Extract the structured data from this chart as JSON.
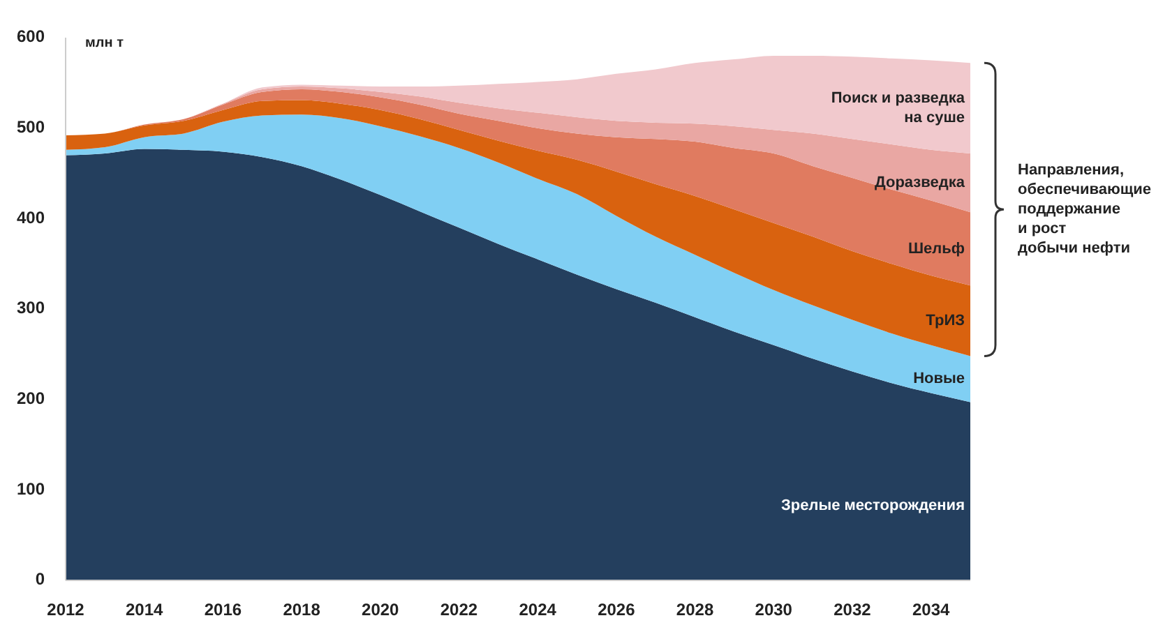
{
  "chart_data": {
    "type": "area",
    "stacked": true,
    "ylabel": "млн т",
    "x": [
      2012,
      2013,
      2014,
      2015,
      2016,
      2017,
      2018,
      2019,
      2020,
      2021,
      2022,
      2023,
      2024,
      2025,
      2026,
      2027,
      2028,
      2029,
      2030,
      2031,
      2032,
      2033,
      2034,
      2035
    ],
    "xlim": [
      2012,
      2035
    ],
    "xticks": [
      2012,
      2014,
      2016,
      2018,
      2020,
      2022,
      2024,
      2026,
      2028,
      2030,
      2032,
      2034
    ],
    "ylim": [
      0,
      600
    ],
    "yticks": [
      0,
      100,
      200,
      300,
      400,
      500,
      600
    ],
    "grid": false,
    "series": [
      {
        "name": "Зрелые месторождения",
        "color": "#243f5e",
        "values": [
          470,
          472,
          477,
          476,
          474,
          468,
          458,
          443,
          426,
          408,
          390,
          372,
          355,
          338,
          322,
          307,
          291,
          275,
          260,
          245,
          231,
          218,
          207,
          197
        ]
      },
      {
        "name": "Новые",
        "color": "#80cff3",
        "values": [
          6,
          7,
          13,
          18,
          33,
          46,
          57,
          68,
          76,
          83,
          88,
          90,
          89,
          89,
          81,
          73,
          69,
          65,
          61,
          59,
          57,
          55,
          53,
          51
        ]
      },
      {
        "name": "ТрИЗ",
        "color": "#d9620f",
        "values": [
          16,
          15,
          13,
          14,
          13,
          16,
          16,
          16,
          18,
          19,
          20,
          24,
          31,
          38,
          49,
          58,
          65,
          70,
          74,
          76,
          76,
          77,
          77,
          78
        ]
      },
      {
        "name": "Шельф",
        "color": "#e07b60",
        "values": [
          0,
          0,
          1,
          2,
          6,
          10,
          12,
          13,
          14,
          16,
          18,
          22,
          25,
          29,
          38,
          50,
          60,
          68,
          77,
          78,
          81,
          82,
          83,
          81
        ]
      },
      {
        "name": "Доразведка",
        "color": "#e9a7a3",
        "values": [
          0,
          0,
          0,
          0,
          1,
          3,
          3,
          4,
          6,
          9,
          12,
          14,
          17,
          18,
          18,
          18,
          20,
          24,
          26,
          36,
          43,
          50,
          56,
          65
        ]
      },
      {
        "name": "Поиск и разведка на суше",
        "color": "#f1c9cd",
        "values": [
          0,
          0,
          0,
          0,
          0,
          2,
          2,
          3,
          6,
          11,
          19,
          27,
          34,
          42,
          52,
          59,
          67,
          74,
          82,
          86,
          91,
          95,
          99,
          100
        ]
      }
    ],
    "annotations": [
      "Направления, обеспечивающие поддержание и рост добычи нефти"
    ]
  }
}
